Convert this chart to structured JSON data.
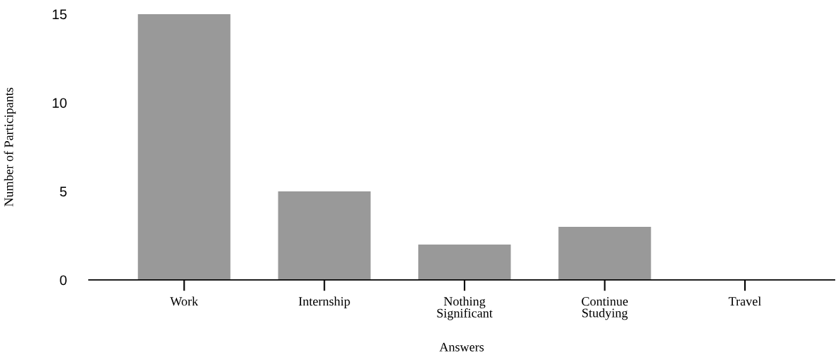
{
  "chart_data": {
    "type": "bar",
    "xlabel": "Answers",
    "ylabel": "Number of Participants",
    "categories": [
      "Work",
      "Internship",
      "Nothing\nSignificant",
      "Continue\nStudying",
      "Travel"
    ],
    "values": [
      15,
      5,
      2,
      3,
      0
    ],
    "color": "#999999",
    "ylim": [
      0,
      15
    ],
    "yticks": [
      0,
      5,
      10,
      15
    ],
    "grid": false,
    "legend": false
  }
}
